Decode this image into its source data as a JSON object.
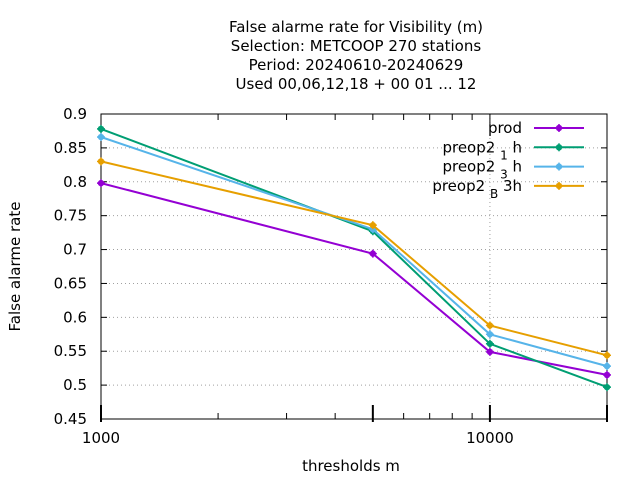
{
  "chart_data": {
    "type": "line",
    "title_lines": [
      "False alarme rate  for Visibility (m)",
      "Selection: METCOOP    270 stations",
      "Period: 20240610-20240629",
      "Used  00,06,12,18 + 00 01 ... 12"
    ],
    "xlabel": "thresholds m",
    "ylabel": "False alarme rate",
    "xscale": "log",
    "xlim": [
      1000,
      20000
    ],
    "ylim": [
      0.45,
      0.9
    ],
    "xticks": [
      1000,
      10000
    ],
    "xtick_labels": [
      "1000",
      "10000"
    ],
    "yticks": [
      0.45,
      0.5,
      0.55,
      0.6,
      0.65,
      0.7,
      0.75,
      0.8,
      0.85,
      0.9
    ],
    "ytick_labels": [
      "0.45",
      "0.5",
      "0.55",
      "0.6",
      "0.65",
      "0.7",
      "0.75",
      "0.8",
      "0.85",
      "0.9"
    ],
    "grid": true,
    "legend_position": "top-right",
    "x": [
      1000,
      5000,
      10000,
      20000
    ],
    "series": [
      {
        "name": "prod",
        "name_parts": [
          [
            "prod",
            ""
          ]
        ],
        "color": "#9400d3",
        "values": [
          0.798,
          0.694,
          0.549,
          0.515
        ]
      },
      {
        "name": "preop2 1 h",
        "name_parts": [
          [
            "preop2 ",
            ""
          ],
          [
            "1",
            "sub"
          ],
          [
            " h",
            ""
          ]
        ],
        "color": "#009e73",
        "values": [
          0.878,
          0.727,
          0.561,
          0.497
        ]
      },
      {
        "name": "preop2 3 h",
        "name_parts": [
          [
            "preop2 ",
            ""
          ],
          [
            "3",
            "sub"
          ],
          [
            " h",
            ""
          ]
        ],
        "color": "#56b4e9",
        "values": [
          0.866,
          0.73,
          0.575,
          0.528
        ]
      },
      {
        "name": "preop2 B 3h",
        "name_parts": [
          [
            "preop2 ",
            ""
          ],
          [
            "B",
            "sub"
          ],
          [
            " 3h",
            ""
          ]
        ],
        "color": "#e69f00",
        "values": [
          0.83,
          0.736,
          0.588,
          0.544
        ]
      }
    ]
  }
}
